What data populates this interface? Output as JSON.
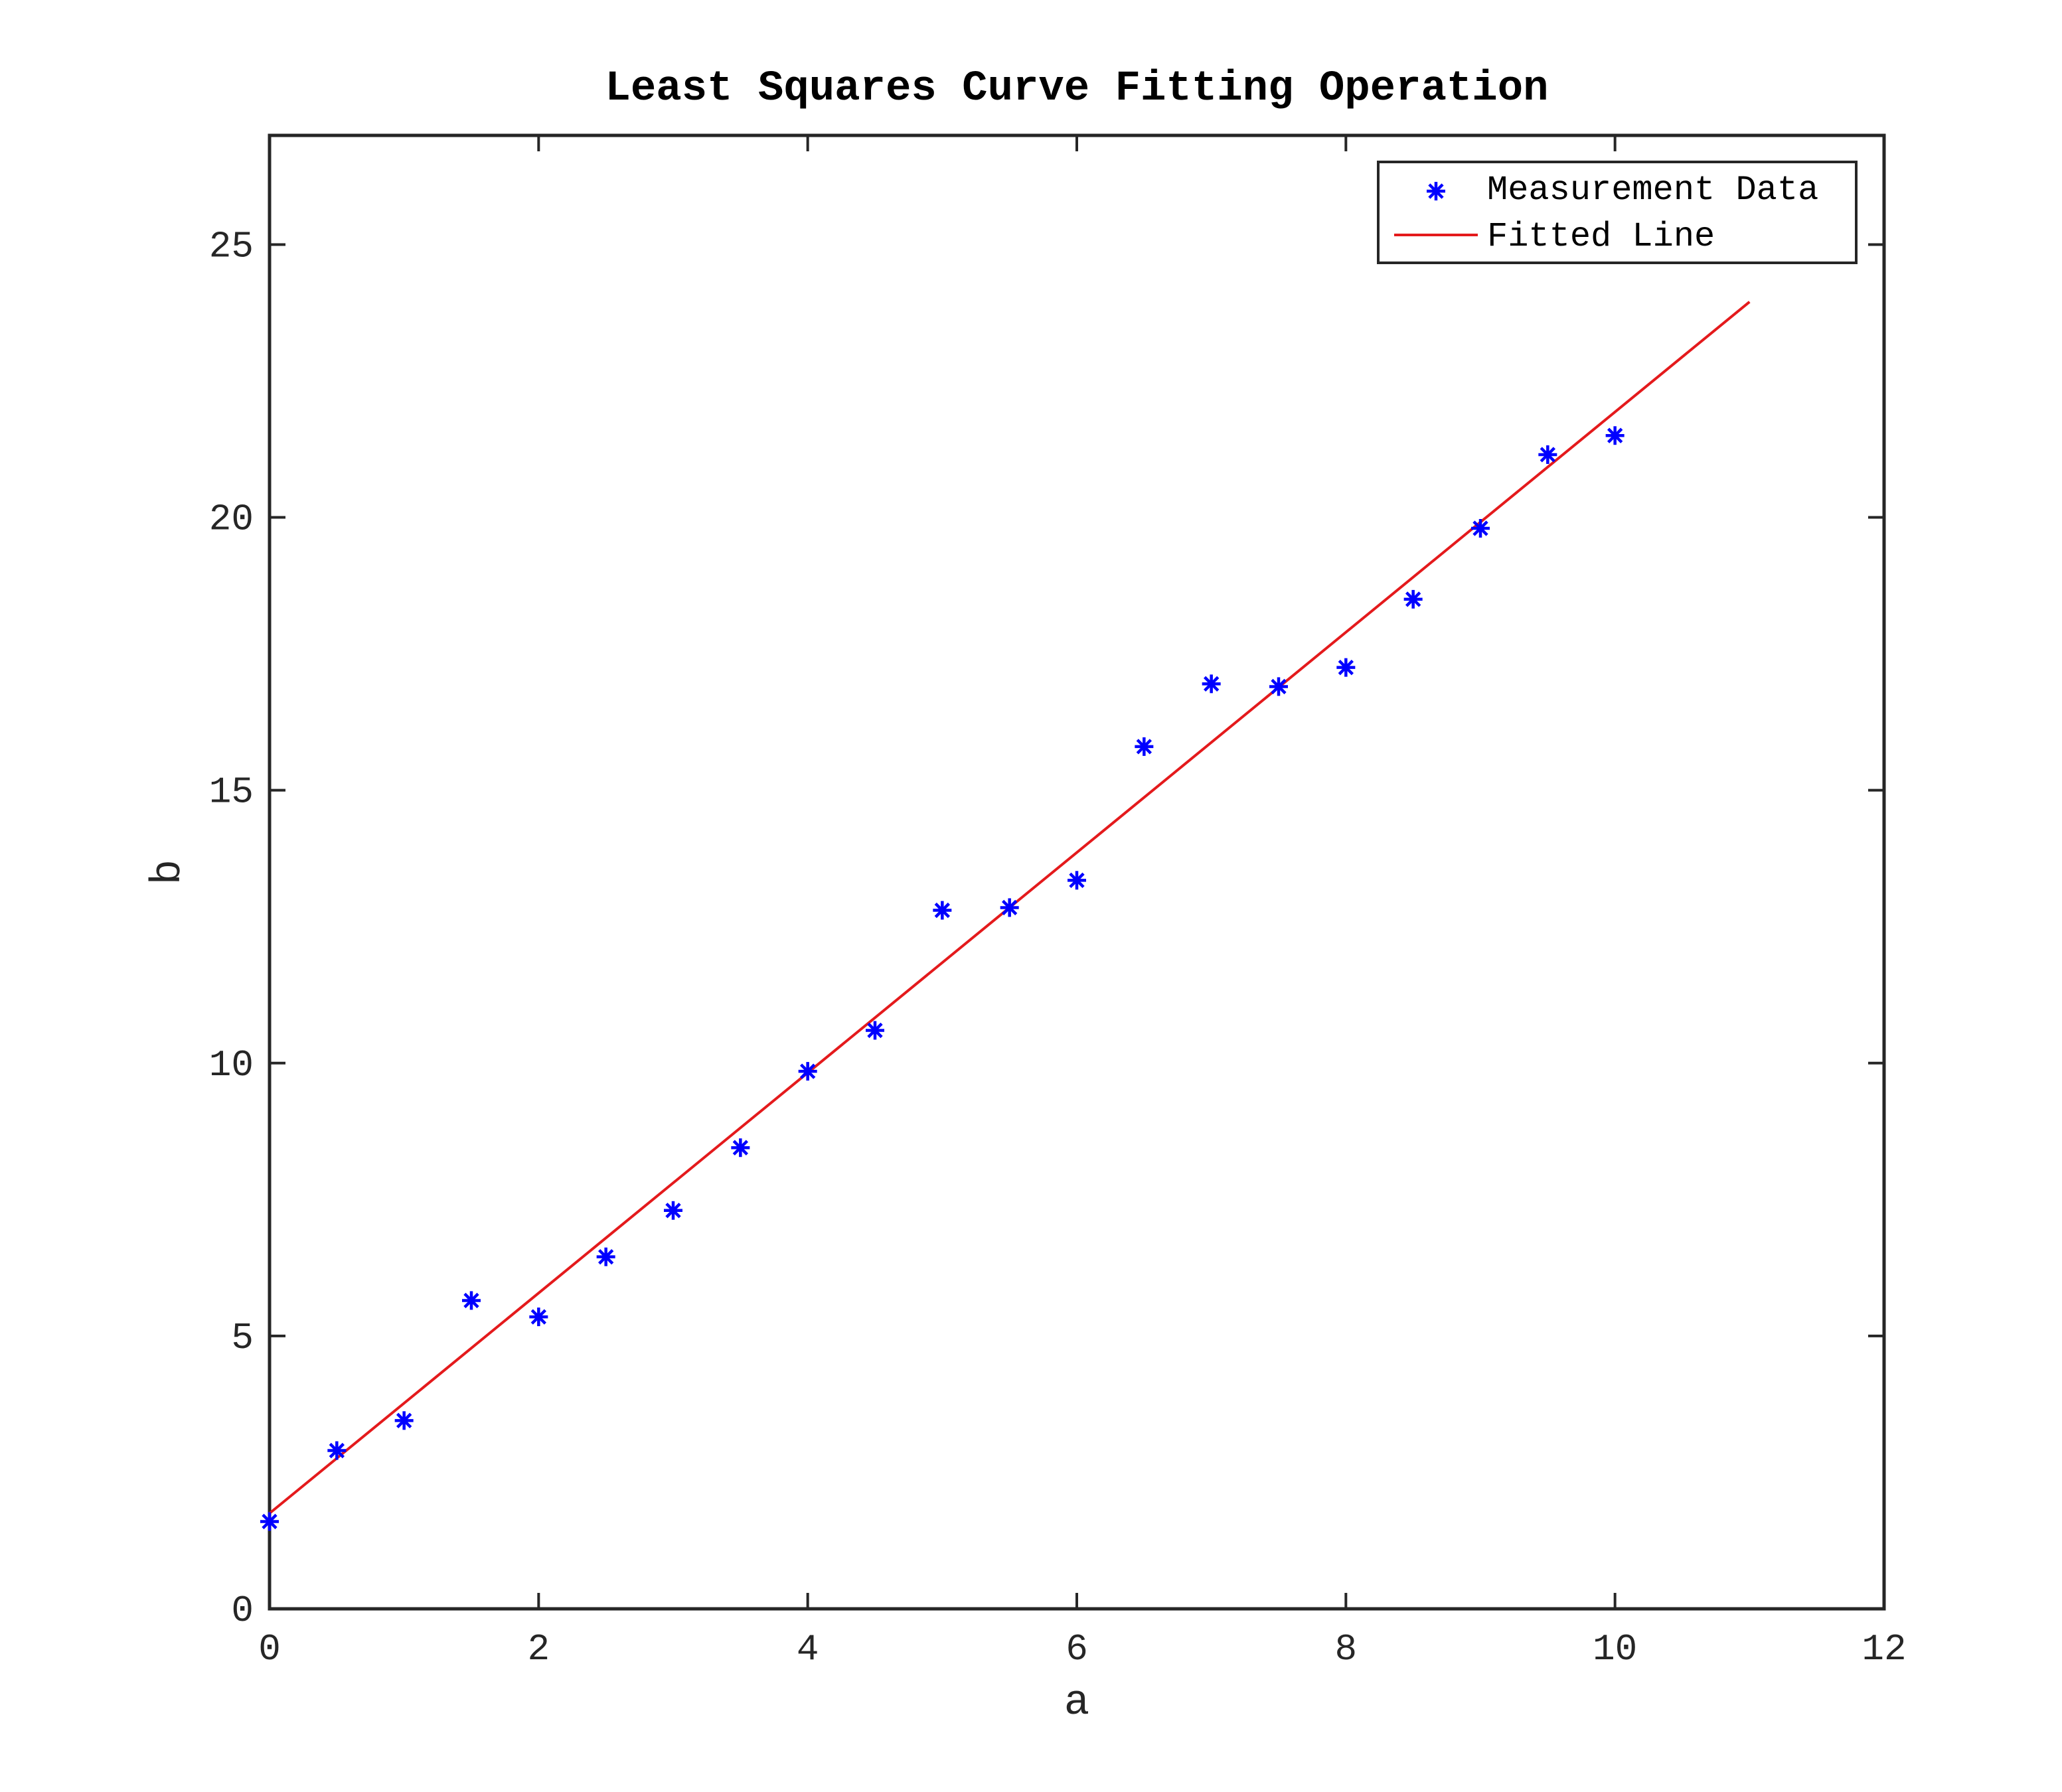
{
  "chart_data": {
    "type": "scatter",
    "title": "Least Squares Curve Fitting Operation",
    "xlabel": "a",
    "ylabel": "b",
    "xlim": [
      0,
      12
    ],
    "ylim": [
      0,
      27
    ],
    "xticks": [
      0,
      2,
      4,
      6,
      8,
      10,
      12
    ],
    "yticks": [
      0,
      5,
      10,
      15,
      20,
      25
    ],
    "grid": false,
    "legend_position": "top-right",
    "series": [
      {
        "name": "Measurement Data",
        "kind": "markers",
        "marker": "asterisk",
        "color": "#0000ff",
        "x": [
          0,
          0.5,
          1,
          1.5,
          2,
          2.5,
          3,
          3.5,
          4,
          4.5,
          5,
          5.5,
          6,
          6.5,
          7,
          7.5,
          8,
          8.5,
          9,
          9.5,
          10
        ],
        "y": [
          1.6,
          2.9,
          3.45,
          5.65,
          5.35,
          6.45,
          7.3,
          8.45,
          9.85,
          10.6,
          12.8,
          12.85,
          13.35,
          15.8,
          16.95,
          16.9,
          17.25,
          18.5,
          19.8,
          21.15,
          21.5
        ]
      },
      {
        "name": "Fitted Line",
        "kind": "line",
        "color": "#e41a1c",
        "x": [
          0,
          11
        ],
        "y": [
          1.75,
          23.95
        ]
      }
    ]
  }
}
